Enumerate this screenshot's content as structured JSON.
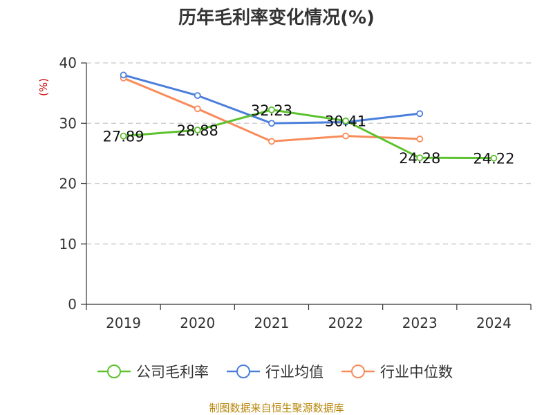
{
  "chart_data": {
    "type": "line",
    "title": "历年毛利率变化情况(%)",
    "ylabel": "(%)",
    "xlabel": "",
    "ylim": [
      0,
      40
    ],
    "yticks": [
      0,
      10,
      20,
      30,
      40
    ],
    "categories": [
      "2019",
      "2020",
      "2021",
      "2022",
      "2023",
      "2024"
    ],
    "grid": true,
    "legend_position": "bottom",
    "series": [
      {
        "name": "公司毛利率",
        "color": "#5cc12d",
        "values": [
          27.89,
          28.88,
          32.23,
          30.41,
          24.28,
          24.22
        ],
        "labels": [
          "27.89",
          "28.88",
          "32.23",
          "30.41",
          "24.28",
          "24.22"
        ]
      },
      {
        "name": "行业均值",
        "color": "#4a7fdb",
        "values": [
          38.0,
          34.6,
          30.0,
          30.2,
          31.6,
          null
        ]
      },
      {
        "name": "行业中位数",
        "color": "#f78c5a",
        "values": [
          37.5,
          32.4,
          27.0,
          27.9,
          27.4,
          null
        ]
      }
    ],
    "source": "制图数据来自恒生聚源数据库"
  }
}
